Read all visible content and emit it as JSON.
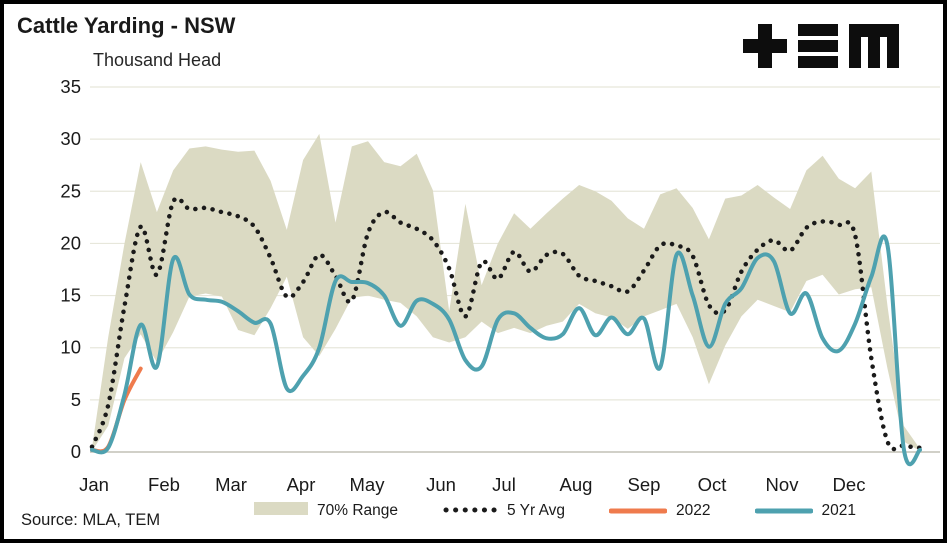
{
  "header": {
    "title": "Cattle Yarding - NSW",
    "subtitle": "Thousand Head",
    "logo_name": "TEM logo"
  },
  "source": {
    "label": "Source: MLA, TEM"
  },
  "colors": {
    "band": "#DBDAC3",
    "avg_dotted": "#1a1a1a",
    "line_2022": "#EF7B4D",
    "line_2021": "#4EA1AF",
    "grid": "#E7E7DB",
    "zero_line": "#C2C1B5",
    "text": "#1a1a1a"
  },
  "chart_data": {
    "type": "line",
    "title": "Cattle Yarding - NSW",
    "ylabel": "Thousand Head",
    "xlabel": "",
    "ylim": [
      0,
      35
    ],
    "yticks": [
      0,
      5,
      10,
      15,
      20,
      25,
      30,
      35
    ],
    "x": "week-of-year (52 weekly points, Jan-Dec)",
    "categories": [
      "Jan",
      "Feb",
      "Mar",
      "Apr",
      "May",
      "Jun",
      "Jul",
      "Aug",
      "Sep",
      "Oct",
      "Nov",
      "Dec"
    ],
    "grid": "horizontal",
    "legend_position": "bottom",
    "series": [
      {
        "name": "70% Range",
        "type": "band",
        "color": "#DBDAC3",
        "lower": [
          0.1,
          2.5,
          9.0,
          11.3,
          8.6,
          11.5,
          14.9,
          15.2,
          14.9,
          11.7,
          11.2,
          13.8,
          16.8,
          11.0,
          9.2,
          11.8,
          14.8,
          15.0,
          14.6,
          14.3,
          13.0,
          11.0,
          10.5,
          11.0,
          12.5,
          11.4,
          11.9,
          11.4,
          12.1,
          12.5,
          14.2,
          13.3,
          12.9,
          11.8,
          13.0,
          13.6,
          14.2,
          11.0,
          6.5,
          10.2,
          13.0,
          14.6,
          14.0,
          13.4,
          16.4,
          17.0,
          15.1,
          15.6,
          15.8,
          8.0,
          1.0,
          0.1
        ],
        "upper": [
          0.4,
          11.0,
          20.0,
          27.8,
          23.0,
          27.0,
          29.1,
          29.3,
          29.0,
          28.8,
          28.9,
          26.0,
          21.3,
          28.0,
          30.5,
          22.0,
          29.3,
          29.8,
          27.8,
          27.4,
          28.6,
          25.1,
          13.5,
          23.8,
          16.0,
          20.0,
          22.9,
          21.4,
          22.9,
          24.3,
          25.6,
          25.0,
          24.1,
          22.4,
          21.4,
          24.7,
          25.3,
          23.4,
          20.4,
          24.3,
          24.6,
          25.6,
          24.4,
          23.3,
          27.0,
          28.4,
          26.2,
          25.3,
          26.9,
          14.0,
          2.5,
          0.3
        ]
      },
      {
        "name": "5 Yr Avg",
        "type": "dotted-line",
        "color": "#1a1a1a",
        "values": [
          0.5,
          4.5,
          14.0,
          21.6,
          17.0,
          24.0,
          23.3,
          23.4,
          23.0,
          22.6,
          21.6,
          18.6,
          14.9,
          16.3,
          18.9,
          16.9,
          14.5,
          21.0,
          23.0,
          22.0,
          21.4,
          20.3,
          17.6,
          13.0,
          18.2,
          16.6,
          19.2,
          17.3,
          18.9,
          19.0,
          16.9,
          16.4,
          15.9,
          15.4,
          17.4,
          19.8,
          19.8,
          18.8,
          14.1,
          13.6,
          17.3,
          19.4,
          20.3,
          19.3,
          21.5,
          22.1,
          21.8,
          20.8,
          9.0,
          1.0,
          0.6,
          0.4
        ]
      },
      {
        "name": "2022",
        "type": "line",
        "color": "#EF7B4D",
        "values": [
          0.2,
          0.5,
          5.0,
          8.0
        ]
      },
      {
        "name": "2021",
        "type": "line",
        "color": "#4EA1AF",
        "values": [
          0.2,
          0.4,
          5.5,
          12.2,
          8.2,
          18.5,
          15.1,
          14.6,
          14.4,
          13.5,
          12.4,
          12.3,
          6.1,
          7.3,
          10.0,
          16.4,
          16.3,
          16.2,
          15.0,
          12.1,
          14.5,
          14.2,
          12.7,
          8.8,
          8.2,
          12.7,
          13.3,
          11.9,
          10.9,
          11.3,
          13.8,
          11.2,
          12.9,
          11.3,
          12.8,
          8.1,
          18.9,
          15.0,
          10.1,
          14.2,
          15.7,
          18.6,
          18.3,
          13.3,
          15.2,
          10.9,
          9.7,
          12.3,
          16.8,
          19.8,
          0.3,
          0.2
        ]
      }
    ]
  }
}
